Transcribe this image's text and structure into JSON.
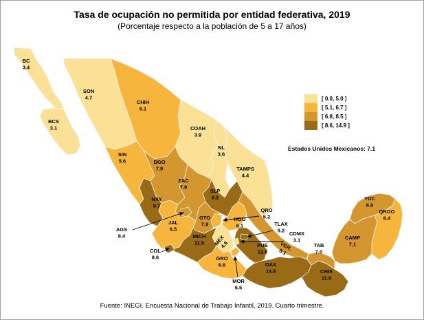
{
  "title": "Tasa de ocupación no permitida por entidad federativa, 2019",
  "subtitle": "(Porcentaje respecto a la población de 5 a 17 años)",
  "national_note": "Estados Unidos Mexicanos: 7.1",
  "source": "Fuente: INEGI. Encuesta Nacional de Trabajo Infantil, 2019. Cuarto trimestre.",
  "legend": {
    "classes": [
      {
        "label": "[ 0.0, 5.0 ]",
        "range": [
          0.0,
          5.0
        ],
        "color": "#FBE195"
      },
      {
        "label": "[ 5.1, 6.7 ]",
        "range": [
          5.1,
          6.7
        ],
        "color": "#F6B53C"
      },
      {
        "label": "[ 6.8, 8.5 ]",
        "range": [
          6.8,
          8.5
        ],
        "color": "#D4962F"
      },
      {
        "label": "[ 8.6, 14.9 ]",
        "range": [
          8.6,
          14.9
        ],
        "color": "#9A6B16"
      }
    ]
  },
  "chart_data": {
    "type": "choropleth",
    "region": "Mexico, entidades federativas",
    "national_value": 7.1,
    "states": [
      {
        "abbr": "BC",
        "value": 3.4,
        "class": 0
      },
      {
        "abbr": "BCS",
        "value": 3.1,
        "class": 0
      },
      {
        "abbr": "SON",
        "value": 4.7,
        "class": 0
      },
      {
        "abbr": "CHIH",
        "value": 6.1,
        "class": 1
      },
      {
        "abbr": "COAH",
        "value": 3.9,
        "class": 0
      },
      {
        "abbr": "NL",
        "value": 3.6,
        "class": 0
      },
      {
        "abbr": "TAMPS",
        "value": 4.4,
        "class": 0
      },
      {
        "abbr": "SIN",
        "value": 5.6,
        "class": 1
      },
      {
        "abbr": "DGO",
        "value": 7.9,
        "class": 2
      },
      {
        "abbr": "ZAC",
        "value": 7.9,
        "class": 2
      },
      {
        "abbr": "SLP",
        "value": 9.2,
        "class": 3
      },
      {
        "abbr": "NAY",
        "value": 9.7,
        "class": 3
      },
      {
        "abbr": "AGS",
        "value": 8.4,
        "class": 2
      },
      {
        "abbr": "JAL",
        "value": 6.5,
        "class": 1
      },
      {
        "abbr": "GTO",
        "value": 7.9,
        "class": 2
      },
      {
        "abbr": "QRO",
        "value": 5.2,
        "class": 1
      },
      {
        "abbr": "HGO",
        "value": 6.1,
        "class": 1
      },
      {
        "abbr": "TLAX",
        "value": 9.2,
        "class": 3
      },
      {
        "abbr": "CDMX",
        "value": 3.1,
        "class": 0
      },
      {
        "abbr": "MEX",
        "value": 4.6,
        "class": 0
      },
      {
        "abbr": "MICH",
        "value": 11.5,
        "class": 3
      },
      {
        "abbr": "COL",
        "value": 8.6,
        "class": 3
      },
      {
        "abbr": "GRO",
        "value": 6.6,
        "class": 1
      },
      {
        "abbr": "MOR",
        "value": 6.5,
        "class": 1
      },
      {
        "abbr": "PUE",
        "value": 12.6,
        "class": 3
      },
      {
        "abbr": "VER.",
        "value": 8.1,
        "class": 2
      },
      {
        "abbr": "OAX",
        "value": 14.9,
        "class": 3
      },
      {
        "abbr": "CHIS",
        "value": 11.9,
        "class": 3
      },
      {
        "abbr": "TAB",
        "value": 7.0,
        "class": 2
      },
      {
        "abbr": "CAMP",
        "value": 7.1,
        "class": 2
      },
      {
        "abbr": "YUC",
        "value": 6.9,
        "class": 2
      },
      {
        "abbr": "QROO",
        "value": 6.4,
        "class": 1
      }
    ]
  }
}
